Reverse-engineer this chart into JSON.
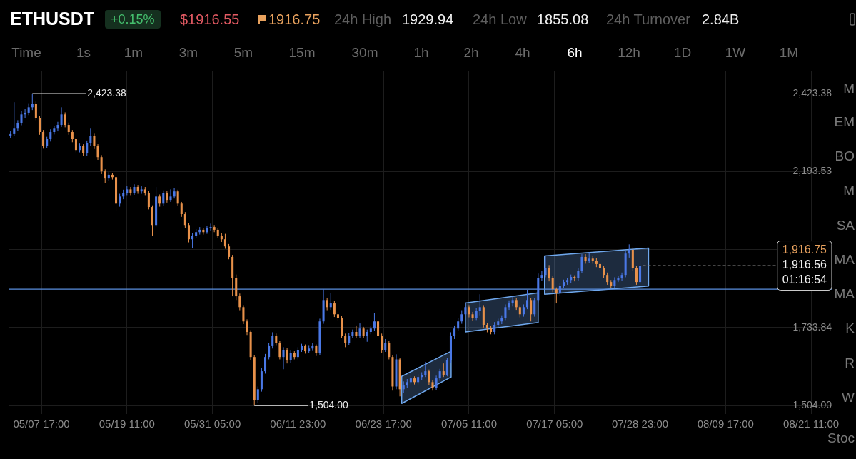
{
  "chart_data": {
    "type": "candlestick",
    "title": "ETHUSDT",
    "xlim": [
      "--05-03T07:00",
      "--08-24T07:00"
    ],
    "xticks": [
      {
        "value": "--05-07T17:00",
        "label": "05/07 17:00"
      },
      {
        "value": "--05-19T11:00",
        "label": "05/19 11:00"
      },
      {
        "value": "--05-31T05:00",
        "label": "05/31 05:00"
      },
      {
        "value": "--06-11T23:00",
        "label": "06/11 23:00"
      },
      {
        "value": "--06-23T17:00",
        "label": "06/23 17:00"
      },
      {
        "value": "--07-05T11:00",
        "label": "07/05 11:00"
      },
      {
        "value": "--07-17T05:00",
        "label": "07/17 05:00"
      },
      {
        "value": "--07-28T23:00",
        "label": "07/28 23:00"
      },
      {
        "value": "--08-09T17:00",
        "label": "08/09 17:00"
      },
      {
        "value": "--08-21T11:00",
        "label": "08/21 11:00"
      }
    ],
    "ylim": [
      1479,
      2491
    ],
    "yticks": [
      {
        "value": 2423.38,
        "label": "2,423.38"
      },
      {
        "value": 2193.53,
        "label": "2,193.53"
      },
      {
        "value": 1963.69,
        "label": null
      },
      {
        "value": 1733.84,
        "label": "1,733.84"
      },
      {
        "value": 1504,
        "label": "1,504.00"
      }
    ],
    "grid": true,
    "series": [
      {
        "x": [
          "--05-03T11:00",
          "--05-03T23:00",
          "--05-04T11:00",
          "--05-04T23:00",
          "--05-05T11:00",
          "--05-05T23:00",
          "--05-06T11:00",
          "--05-06T23:00",
          "--05-07T11:00",
          "--05-07T23:00",
          "--05-08T11:00",
          "--05-08T23:00",
          "--05-09T11:00",
          "--05-09T23:00",
          "--05-10T11:00",
          "--05-10T23:00",
          "--05-11T11:00",
          "--05-11T23:00",
          "--05-12T11:00",
          "--05-12T23:00",
          "--05-13T11:00",
          "--05-13T23:00",
          "--05-14T11:00",
          "--05-14T23:00",
          "--05-15T11:00",
          "--05-15T23:00",
          "--05-16T11:00",
          "--05-16T23:00",
          "--05-17T11:00",
          "--05-17T23:00",
          "--05-18T11:00",
          "--05-18T23:00",
          "--05-19T11:00",
          "--05-19T23:00",
          "--05-20T11:00",
          "--05-20T23:00",
          "--05-21T11:00",
          "--05-21T23:00",
          "--05-22T11:00",
          "--05-22T23:00",
          "--05-23T11:00",
          "--05-23T23:00",
          "--05-24T11:00",
          "--05-24T23:00",
          "--05-25T11:00",
          "--05-25T23:00",
          "--05-26T11:00",
          "--05-26T23:00",
          "--05-27T11:00",
          "--05-27T23:00",
          "--05-28T11:00",
          "--05-28T23:00",
          "--05-29T11:00",
          "--05-29T23:00",
          "--05-30T11:00",
          "--05-30T23:00",
          "--05-31T11:00",
          "--05-31T23:00",
          "--06-01T11:00",
          "--06-01T23:00",
          "--06-02T11:00",
          "--06-02T23:00",
          "--06-03T11:00",
          "--06-03T23:00",
          "--06-04T11:00",
          "--06-04T23:00",
          "--06-05T11:00",
          "--06-05T23:00",
          "--06-06T11:00",
          "--06-06T23:00",
          "--06-07T11:00",
          "--06-07T23:00",
          "--06-08T11:00",
          "--06-08T23:00",
          "--06-09T11:00",
          "--06-09T23:00",
          "--06-10T11:00",
          "--06-10T23:00",
          "--06-11T11:00",
          "--06-11T23:00",
          "--06-12T11:00",
          "--06-12T23:00",
          "--06-13T11:00",
          "--06-13T23:00",
          "--06-14T11:00",
          "--06-14T23:00",
          "--06-15T11:00",
          "--06-15T23:00",
          "--06-16T11:00",
          "--06-16T23:00",
          "--06-17T11:00",
          "--06-17T23:00",
          "--06-18T11:00",
          "--06-18T23:00",
          "--06-19T11:00",
          "--06-19T23:00",
          "--06-20T11:00",
          "--06-20T23:00",
          "--06-21T11:00",
          "--06-21T23:00",
          "--06-22T11:00",
          "--06-22T23:00",
          "--06-23T11:00",
          "--06-23T23:00",
          "--06-24T11:00",
          "--06-24T23:00",
          "--06-25T11:00",
          "--06-25T23:00",
          "--06-26T11:00",
          "--06-26T23:00",
          "--06-27T11:00",
          "--06-27T23:00",
          "--06-28T11:00",
          "--06-28T23:00",
          "--06-29T11:00",
          "--06-29T23:00",
          "--06-30T11:00",
          "--06-30T23:00",
          "--07-01T11:00",
          "--07-01T23:00",
          "--07-02T11:00",
          "--07-02T23:00",
          "--07-03T11:00",
          "--07-03T23:00",
          "--07-04T11:00",
          "--07-04T23:00",
          "--07-05T11:00",
          "--07-05T23:00",
          "--07-06T11:00",
          "--07-06T23:00",
          "--07-07T11:00",
          "--07-07T23:00",
          "--07-08T11:00",
          "--07-08T23:00",
          "--07-09T11:00",
          "--07-09T23:00",
          "--07-10T11:00",
          "--07-10T23:00",
          "--07-11T11:00",
          "--07-11T23:00",
          "--07-12T11:00",
          "--07-12T23:00",
          "--07-13T11:00",
          "--07-13T23:00",
          "--07-14T11:00",
          "--07-14T23:00",
          "--07-15T11:00",
          "--07-15T23:00",
          "--07-16T11:00",
          "--07-16T23:00",
          "--07-17T11:00",
          "--07-17T23:00",
          "--07-18T11:00",
          "--07-18T23:00",
          "--07-19T11:00",
          "--07-19T23:00",
          "--07-20T11:00",
          "--07-20T23:00",
          "--07-21T11:00",
          "--07-21T23:00",
          "--07-22T11:00",
          "--07-22T23:00",
          "--07-23T11:00",
          "--07-23T23:00",
          "--07-24T11:00",
          "--07-24T23:00",
          "--07-25T11:00",
          "--07-25T23:00",
          "--07-26T11:00",
          "--07-26T23:00",
          "--07-27T11:00",
          "--07-27T23:00",
          "--07-28T11:00",
          "--07-28T23:00"
        ],
        "ohlc": [
          [
            2299,
            2312,
            2292,
            2304
          ],
          [
            2304,
            2398,
            2298,
            2320
          ],
          [
            2320,
            2345,
            2314,
            2337
          ],
          [
            2337,
            2372,
            2330,
            2362
          ],
          [
            2362,
            2378,
            2350,
            2367
          ],
          [
            2367,
            2395,
            2360,
            2383
          ],
          [
            2383,
            2423.38,
            2375,
            2394
          ],
          [
            2394,
            2400,
            2345,
            2352
          ],
          [
            2352,
            2358,
            2302,
            2310
          ],
          [
            2310,
            2316,
            2261,
            2268
          ],
          [
            2268,
            2296,
            2262,
            2289
          ],
          [
            2289,
            2318,
            2282,
            2310
          ],
          [
            2310,
            2328,
            2303,
            2320
          ],
          [
            2320,
            2340,
            2312,
            2331
          ],
          [
            2331,
            2383,
            2325,
            2362
          ],
          [
            2362,
            2368,
            2324,
            2331
          ],
          [
            2331,
            2338,
            2302,
            2310
          ],
          [
            2310,
            2316,
            2280,
            2289
          ],
          [
            2289,
            2294,
            2250,
            2257
          ],
          [
            2257,
            2276,
            2250,
            2268
          ],
          [
            2268,
            2274,
            2240,
            2247
          ],
          [
            2247,
            2285,
            2240,
            2278
          ],
          [
            2278,
            2320,
            2270,
            2299
          ],
          [
            2299,
            2305,
            2260,
            2268
          ],
          [
            2268,
            2274,
            2228,
            2236
          ],
          [
            2236,
            2242,
            2186,
            2194
          ],
          [
            2194,
            2200,
            2160,
            2173
          ],
          [
            2173,
            2192,
            2166,
            2184
          ],
          [
            2184,
            2190,
            2170,
            2177
          ],
          [
            2177,
            2182,
            2078,
            2099
          ],
          [
            2099,
            2128,
            2090,
            2120
          ],
          [
            2120,
            2140,
            2112,
            2131
          ],
          [
            2131,
            2150,
            2124,
            2141
          ],
          [
            2141,
            2148,
            2124,
            2131
          ],
          [
            2131,
            2156,
            2125,
            2148
          ],
          [
            2148,
            2154,
            2128,
            2135
          ],
          [
            2135,
            2150,
            2128,
            2141
          ],
          [
            2141,
            2148,
            2124,
            2131
          ],
          [
            2131,
            2136,
            2082,
            2089
          ],
          [
            2089,
            2094,
            2005,
            2036
          ],
          [
            2036,
            2148,
            2030,
            2120
          ],
          [
            2120,
            2126,
            2090,
            2099
          ],
          [
            2099,
            2138,
            2092,
            2131
          ],
          [
            2131,
            2137,
            2102,
            2110
          ],
          [
            2110,
            2141,
            2104,
            2120
          ],
          [
            2120,
            2145,
            2114,
            2135
          ],
          [
            2135,
            2140,
            2092,
            2099
          ],
          [
            2099,
            2104,
            2060,
            2068
          ],
          [
            2068,
            2074,
            2028,
            2036
          ],
          [
            2036,
            2042,
            1985,
            1994
          ],
          [
            1994,
            2012,
            1967,
            2005
          ],
          [
            2005,
            2024,
            1998,
            2015
          ],
          [
            2015,
            2030,
            2008,
            2022
          ],
          [
            2022,
            2028,
            2008,
            2015
          ],
          [
            2015,
            2034,
            2010,
            2026
          ],
          [
            2026,
            2040,
            2020,
            2030
          ],
          [
            2030,
            2036,
            2015,
            2022
          ],
          [
            2022,
            2028,
            1998,
            2005
          ],
          [
            2005,
            2012,
            1986,
            1994
          ],
          [
            1994,
            2010,
            1966,
            1973
          ],
          [
            1973,
            1980,
            1935,
            1942
          ],
          [
            1942,
            1948,
            1826,
            1879
          ],
          [
            1879,
            1890,
            1815,
            1826
          ],
          [
            1826,
            1834,
            1785,
            1794
          ],
          [
            1794,
            1800,
            1744,
            1752
          ],
          [
            1752,
            1758,
            1712,
            1721
          ],
          [
            1721,
            1726,
            1638,
            1647
          ],
          [
            1647,
            1652,
            1504,
            1521
          ],
          [
            1521,
            1560,
            1512,
            1552
          ],
          [
            1552,
            1614,
            1545,
            1605
          ],
          [
            1605,
            1656,
            1598,
            1647
          ],
          [
            1647,
            1688,
            1640,
            1679
          ],
          [
            1679,
            1720,
            1672,
            1710
          ],
          [
            1710,
            1716,
            1680,
            1689
          ],
          [
            1689,
            1695,
            1640,
            1647
          ],
          [
            1647,
            1676,
            1611,
            1668
          ],
          [
            1668,
            1674,
            1628,
            1637
          ],
          [
            1637,
            1666,
            1630,
            1658
          ],
          [
            1658,
            1664,
            1640,
            1647
          ],
          [
            1647,
            1676,
            1640,
            1668
          ],
          [
            1668,
            1686,
            1662,
            1679
          ],
          [
            1679,
            1684,
            1657,
            1664
          ],
          [
            1664,
            1680,
            1658,
            1672
          ],
          [
            1672,
            1688,
            1665,
            1679
          ],
          [
            1679,
            1684,
            1650,
            1658
          ],
          [
            1658,
            1760,
            1652,
            1752
          ],
          [
            1752,
            1847,
            1745,
            1815
          ],
          [
            1815,
            1822,
            1785,
            1794
          ],
          [
            1794,
            1836,
            1786,
            1805
          ],
          [
            1805,
            1812,
            1765,
            1773
          ],
          [
            1773,
            1780,
            1755,
            1763
          ],
          [
            1763,
            1768,
            1702,
            1710
          ],
          [
            1710,
            1716,
            1676,
            1689
          ],
          [
            1689,
            1718,
            1682,
            1710
          ],
          [
            1710,
            1728,
            1702,
            1721
          ],
          [
            1721,
            1740,
            1704,
            1710
          ],
          [
            1710,
            1746,
            1704,
            1731
          ],
          [
            1731,
            1736,
            1702,
            1710
          ],
          [
            1710,
            1728,
            1692,
            1721
          ],
          [
            1721,
            1740,
            1714,
            1731
          ],
          [
            1731,
            1777,
            1725,
            1752
          ],
          [
            1752,
            1758,
            1702,
            1710
          ],
          [
            1710,
            1716,
            1660,
            1668
          ],
          [
            1668,
            1700,
            1662,
            1689
          ],
          [
            1689,
            1694,
            1640,
            1647
          ],
          [
            1647,
            1652,
            1548,
            1560
          ],
          [
            1560,
            1655,
            1552,
            1640
          ],
          [
            1640,
            1645,
            1531,
            1552
          ],
          [
            1552,
            1575,
            1540,
            1563
          ],
          [
            1563,
            1582,
            1555,
            1573
          ],
          [
            1573,
            1592,
            1566,
            1584
          ],
          [
            1584,
            1590,
            1566,
            1573
          ],
          [
            1573,
            1596,
            1566,
            1588
          ],
          [
            1588,
            1602,
            1580,
            1594
          ],
          [
            1594,
            1632,
            1588,
            1605
          ],
          [
            1605,
            1610,
            1565,
            1573
          ],
          [
            1573,
            1578,
            1548,
            1556
          ],
          [
            1556,
            1592,
            1550,
            1584
          ],
          [
            1584,
            1612,
            1577,
            1605
          ],
          [
            1605,
            1628,
            1588,
            1594
          ],
          [
            1594,
            1645,
            1590,
            1637
          ],
          [
            1637,
            1720,
            1630,
            1710
          ],
          [
            1710,
            1740,
            1700,
            1731
          ],
          [
            1731,
            1762,
            1724,
            1752
          ],
          [
            1752,
            1785,
            1745,
            1773
          ],
          [
            1773,
            1808,
            1766,
            1794
          ],
          [
            1794,
            1800,
            1764,
            1773
          ],
          [
            1773,
            1780,
            1754,
            1763
          ],
          [
            1763,
            1792,
            1756,
            1784
          ],
          [
            1784,
            1832,
            1770,
            1794
          ],
          [
            1794,
            1800,
            1734,
            1742
          ],
          [
            1742,
            1748,
            1720,
            1731
          ],
          [
            1731,
            1738,
            1714,
            1721
          ],
          [
            1721,
            1750,
            1714,
            1742
          ],
          [
            1742,
            1760,
            1735,
            1752
          ],
          [
            1752,
            1770,
            1744,
            1763
          ],
          [
            1763,
            1802,
            1756,
            1794
          ],
          [
            1794,
            1814,
            1786,
            1805
          ],
          [
            1805,
            1826,
            1796,
            1815
          ],
          [
            1815,
            1822,
            1786,
            1794
          ],
          [
            1794,
            1800,
            1764,
            1773
          ],
          [
            1773,
            1802,
            1766,
            1794
          ],
          [
            1794,
            1845,
            1788,
            1815
          ],
          [
            1815,
            1820,
            1752,
            1773
          ],
          [
            1773,
            1822,
            1766,
            1815
          ],
          [
            1815,
            1893,
            1808,
            1879
          ],
          [
            1879,
            1900,
            1872,
            1889
          ],
          [
            1889,
            1946,
            1882,
            1910
          ],
          [
            1910,
            1918,
            1870,
            1879
          ],
          [
            1879,
            1885,
            1838,
            1847
          ],
          [
            1847,
            1852,
            1805,
            1836
          ],
          [
            1836,
            1864,
            1828,
            1857
          ],
          [
            1857,
            1875,
            1850,
            1868
          ],
          [
            1868,
            1880,
            1860,
            1874
          ],
          [
            1874,
            1890,
            1866,
            1883
          ],
          [
            1883,
            1888,
            1870,
            1879
          ],
          [
            1879,
            1908,
            1872,
            1900
          ],
          [
            1900,
            1950,
            1895,
            1942
          ],
          [
            1942,
            1950,
            1922,
            1931
          ],
          [
            1931,
            1956,
            1925,
            1937
          ],
          [
            1937,
            1944,
            1922,
            1931
          ],
          [
            1931,
            1938,
            1912,
            1921
          ],
          [
            1921,
            1928,
            1900,
            1910
          ],
          [
            1910,
            1916,
            1880,
            1889
          ],
          [
            1889,
            1896,
            1860,
            1868
          ],
          [
            1868,
            1874,
            1850,
            1857
          ],
          [
            1857,
            1882,
            1850,
            1874
          ],
          [
            1874,
            1886,
            1868,
            1879
          ],
          [
            1879,
            1896,
            1872,
            1889
          ],
          [
            1889,
            1960,
            1882,
            1952
          ],
          [
            1952,
            1979,
            1940,
            1963
          ],
          [
            1963,
            1970,
            1900,
            1910
          ],
          [
            1910,
            1916,
            1860,
            1868
          ],
          [
            1868,
            1929,
            1862,
            1916.56
          ]
        ],
        "colors": [
          "#4a78e6",
          "#4a78e6",
          "#4a78e6",
          "#4a78e6",
          "#4a78e6",
          "#4a78e6",
          "#4a78e6",
          "#e8914a",
          "#e8914a",
          "#e8914a",
          "#4a78e6",
          "#4a78e6",
          "#4a78e6",
          "#4a78e6",
          "#4a78e6",
          "#e8914a",
          "#e8914a",
          "#e8914a",
          "#e8914a",
          "#4a78e6",
          "#e8914a",
          "#4a78e6",
          "#4a78e6",
          "#e8914a",
          "#e8914a",
          "#e8914a",
          "#e8914a",
          "#4a78e6",
          "#e8914a",
          "#e8914a",
          "#4a78e6",
          "#4a78e6",
          "#4a78e6",
          "#e8914a",
          "#4a78e6",
          "#e8914a",
          "#4a78e6",
          "#e8914a",
          "#e8914a",
          "#e8914a",
          "#4a78e6",
          "#e8914a",
          "#4a78e6",
          "#e8914a",
          "#4a78e6",
          "#4a78e6",
          "#e8914a",
          "#e8914a",
          "#e8914a",
          "#e8914a",
          "#4a78e6",
          "#4a78e6",
          "#4a78e6",
          "#e8914a",
          "#4a78e6",
          "#4a78e6",
          "#e8914a",
          "#e8914a",
          "#e8914a",
          "#e8914a",
          "#e8914a",
          "#e8914a",
          "#e8914a",
          "#e8914a",
          "#e8914a",
          "#e8914a",
          "#e8914a",
          "#e8914a",
          "#4a78e6",
          "#4a78e6",
          "#4a78e6",
          "#4a78e6",
          "#4a78e6",
          "#e8914a",
          "#e8914a",
          "#4a78e6",
          "#e8914a",
          "#4a78e6",
          "#e8914a",
          "#4a78e6",
          "#4a78e6",
          "#e8914a",
          "#4a78e6",
          "#4a78e6",
          "#e8914a",
          "#4a78e6",
          "#4a78e6",
          "#e8914a",
          "#4a78e6",
          "#e8914a",
          "#e8914a",
          "#e8914a",
          "#e8914a",
          "#4a78e6",
          "#4a78e6",
          "#e8914a",
          "#4a78e6",
          "#e8914a",
          "#4a78e6",
          "#4a78e6",
          "#4a78e6",
          "#e8914a",
          "#e8914a",
          "#4a78e6",
          "#e8914a",
          "#e8914a",
          "#4a78e6",
          "#e8914a",
          "#4a78e6",
          "#4a78e6",
          "#4a78e6",
          "#e8914a",
          "#4a78e6",
          "#4a78e6",
          "#4a78e6",
          "#e8914a",
          "#e8914a",
          "#4a78e6",
          "#4a78e6",
          "#e8914a",
          "#4a78e6",
          "#4a78e6",
          "#4a78e6",
          "#4a78e6",
          "#4a78e6",
          "#4a78e6",
          "#e8914a",
          "#e8914a",
          "#4a78e6",
          "#4a78e6",
          "#e8914a",
          "#e8914a",
          "#e8914a",
          "#4a78e6",
          "#4a78e6",
          "#4a78e6",
          "#4a78e6",
          "#4a78e6",
          "#4a78e6",
          "#e8914a",
          "#e8914a",
          "#4a78e6",
          "#4a78e6",
          "#e8914a",
          "#4a78e6",
          "#4a78e6",
          "#4a78e6",
          "#4a78e6",
          "#e8914a",
          "#e8914a",
          "#e8914a",
          "#4a78e6",
          "#4a78e6",
          "#4a78e6",
          "#4a78e6",
          "#e8914a",
          "#4a78e6",
          "#4a78e6",
          "#e8914a",
          "#4a78e6",
          "#e8914a",
          "#e8914a",
          "#e8914a",
          "#e8914a",
          "#e8914a",
          "#e8914a",
          "#4a78e6",
          "#4a78e6",
          "#4a78e6",
          "#4a78e6",
          "#4a78e6",
          "#e8914a",
          "#e8914a",
          "#4a78e6"
        ]
      },
      {
        "type": "line",
        "color": "#6fa8ee",
        "x": [
          "--06-26T05:00",
          "--07-03T00:00"
        ],
        "values": [
          null,
          null
        ],
        "lower": [
          1510,
          1588
        ],
        "upper": [
          1590,
          1664
        ]
      },
      {
        "type": "line",
        "color": "#6fa8ee",
        "x": [
          "--07-04T23:00",
          "--07-14T23:00"
        ],
        "values": [
          null,
          null
        ],
        "lower": [
          1721,
          1749
        ],
        "upper": [
          1806,
          1836
        ]
      },
      {
        "type": "line",
        "color": "#6fa8ee",
        "x": [
          "--07-15T20:00",
          "--07-30T03:00"
        ],
        "values": [
          null,
          null
        ],
        "lower": [
          1832,
          1856
        ],
        "upper": [
          1945,
          1968
        ]
      }
    ],
    "ref_lines": [
      {
        "axis": "y",
        "value": 1847,
        "color": "#5a8fe0"
      },
      {
        "axis": "y",
        "value": 1916.56,
        "label": "1,916.56",
        "line_style": "dashed",
        "color": "#8a8a8a"
      }
    ],
    "annotations": [
      {
        "text": "2,423.38",
        "x": "--05-06T11:00",
        "y": 2423.38
      },
      {
        "text": "1,504.00",
        "x": "--06-05T23:00",
        "y": 1504
      },
      "+0.15%",
      "$1916.55",
      "1916.75",
      "24h High",
      "1929.94",
      "24h Low",
      "1855.08",
      "24h Turnover",
      "2.84B",
      "Time",
      "1s",
      "1m",
      "3m",
      "5m",
      "15m",
      "30m",
      "1h",
      "2h",
      "4h",
      "6h",
      "12h",
      "1D",
      "1W",
      "1M",
      "1,916.75",
      "01:16:54",
      "M",
      "EM",
      "BO",
      "M",
      "SA",
      "MA",
      "MA",
      "K",
      "R",
      "W",
      "Stoc"
    ]
  }
}
